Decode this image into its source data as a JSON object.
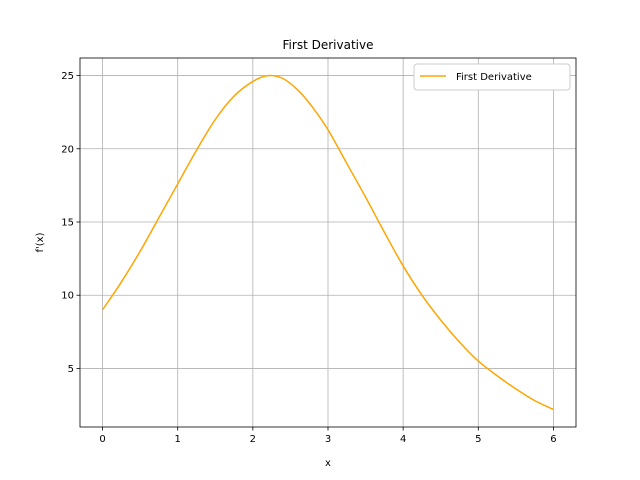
{
  "chart_data": {
    "type": "line",
    "title": "First Derivative",
    "xlabel": "x",
    "ylabel": "f'(x)",
    "xlim": [
      -0.3,
      6.3
    ],
    "ylim": [
      1.0,
      26.2
    ],
    "xticks": [
      0,
      1,
      2,
      3,
      4,
      5,
      6
    ],
    "yticks": [
      5,
      10,
      15,
      20,
      25
    ],
    "grid": true,
    "legend": {
      "position": "top-right"
    },
    "series": [
      {
        "name": "First Derivative",
        "color": "#ffa500",
        "x": [
          0,
          0.25,
          0.5,
          0.75,
          1.0,
          1.25,
          1.5,
          1.75,
          2.0,
          2.2,
          2.4,
          2.6,
          2.8,
          3.0,
          3.25,
          3.5,
          3.75,
          4.0,
          4.25,
          4.5,
          4.75,
          5.0,
          5.25,
          5.5,
          5.75,
          6.0
        ],
        "y": [
          9.0,
          10.9,
          13.0,
          15.3,
          17.6,
          19.9,
          22.0,
          23.6,
          24.6,
          25.0,
          24.8,
          24.0,
          22.8,
          21.3,
          19.0,
          16.7,
          14.3,
          12.0,
          10.0,
          8.3,
          6.8,
          5.5,
          4.5,
          3.6,
          2.8,
          2.2
        ]
      }
    ]
  }
}
